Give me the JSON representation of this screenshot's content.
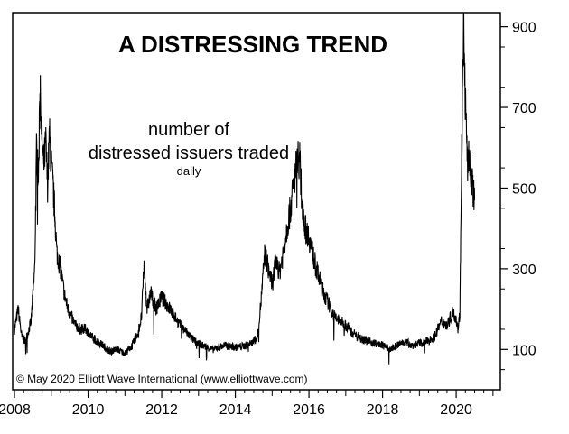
{
  "chart_data": {
    "type": "line",
    "title": "A DISTRESSING TREND",
    "subtitle_line1": "number of",
    "subtitle_line2": "distressed issuers traded",
    "subtitle_line3": "daily",
    "copyright": "© May 2020 Elliott Wave International (www.elliottwave.com)",
    "xlim": [
      2007.95,
      2021.2
    ],
    "ylim": [
      0,
      935
    ],
    "x_ticks": [
      2008,
      2010,
      2012,
      2014,
      2016,
      2018,
      2020
    ],
    "x_tick_labels": [
      "2008",
      "2010",
      "2012",
      "2014",
      "2016",
      "2018",
      "2020"
    ],
    "y_ticks": [
      100,
      300,
      500,
      700,
      900
    ],
    "y_tick_labels": [
      "100",
      "300",
      "500",
      "700",
      "900"
    ],
    "y_axis_side": "right",
    "grid": false,
    "line_color": "#000000",
    "series": [
      {
        "x": [
          2008.0,
          2008.1,
          2008.2,
          2008.3,
          2008.45,
          2008.55,
          2008.6,
          2008.65,
          2008.7,
          2008.75,
          2008.8,
          2008.85,
          2008.9,
          2008.95,
          2009.0,
          2009.05,
          2009.1,
          2009.15,
          2009.25,
          2009.35,
          2009.45,
          2009.55,
          2009.65,
          2009.8,
          2009.95,
          2010.1,
          2010.25,
          2010.4,
          2010.6,
          2010.8,
          2011.0,
          2011.2,
          2011.35,
          2011.45,
          2011.52,
          2011.6,
          2011.7,
          2011.85,
          2012.0,
          2012.15,
          2012.3,
          2012.5,
          2012.7,
          2012.9,
          2013.1,
          2013.4,
          2013.7,
          2014.0,
          2014.3,
          2014.5,
          2014.6,
          2014.7,
          2014.8,
          2014.9,
          2015.0,
          2015.1,
          2015.2,
          2015.3,
          2015.4,
          2015.5,
          2015.6,
          2015.7,
          2015.75,
          2015.8,
          2015.85,
          2015.9,
          2016.0,
          2016.1,
          2016.2,
          2016.3,
          2016.4,
          2016.5,
          2016.6,
          2016.7,
          2016.85,
          2017.0,
          2017.2,
          2017.4,
          2017.6,
          2017.8,
          2018.0,
          2018.2,
          2018.4,
          2018.6,
          2018.8,
          2019.0,
          2019.2,
          2019.4,
          2019.6,
          2019.75,
          2019.9,
          2020.0,
          2020.05,
          2020.1,
          2020.15,
          2020.2,
          2020.25,
          2020.3,
          2020.35,
          2020.4,
          2020.5
        ],
        "values": [
          150,
          200,
          130,
          120,
          170,
          300,
          600,
          520,
          760,
          600,
          560,
          610,
          510,
          630,
          560,
          500,
          430,
          340,
          300,
          240,
          200,
          180,
          160,
          150,
          150,
          130,
          120,
          110,
          95,
          100,
          90,
          110,
          140,
          180,
          310,
          200,
          240,
          200,
          230,
          210,
          190,
          160,
          140,
          120,
          110,
          100,
          110,
          105,
          110,
          120,
          130,
          220,
          340,
          300,
          260,
          320,
          290,
          340,
          400,
          450,
          520,
          580,
          570,
          480,
          440,
          400,
          380,
          340,
          300,
          270,
          240,
          220,
          200,
          180,
          170,
          160,
          140,
          130,
          120,
          115,
          110,
          100,
          110,
          120,
          110,
          115,
          120,
          130,
          170,
          160,
          190,
          180,
          150,
          190,
          600,
          890,
          720,
          560,
          570,
          540,
          470
        ]
      }
    ]
  }
}
